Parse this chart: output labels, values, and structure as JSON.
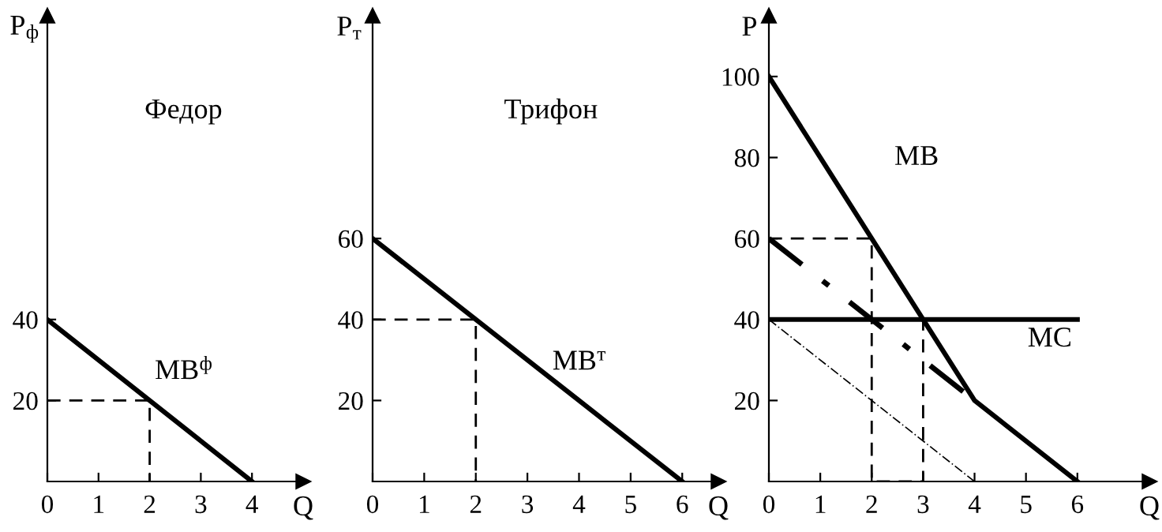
{
  "chart_data": [
    {
      "type": "line",
      "title": "Федор",
      "xlabel": "Q",
      "ylabel": "P$_{ф}$",
      "xlim": [
        0,
        5
      ],
      "ylim": [
        0,
        115
      ],
      "xticks": [
        0,
        1,
        2,
        3,
        4
      ],
      "yticks": [
        20,
        40
      ],
      "grid": false,
      "legend": false,
      "series": [
        {
          "color": "#000000",
          "line_style": "solid",
          "x": [
            0,
            4
          ],
          "values": [
            40,
            0
          ]
        },
        {
          "color": "#000000",
          "line_style": "dashed",
          "x": [
            0,
            2,
            2
          ],
          "values": [
            20,
            20,
            0
          ]
        }
      ],
      "annotations": [
        "MB$^{ф}$"
      ]
    },
    {
      "type": "line",
      "title": "Трифон",
      "xlabel": "Q",
      "ylabel": "P$_{т}$",
      "xlim": [
        0,
        6.7
      ],
      "ylim": [
        0,
        115
      ],
      "xticks": [
        0,
        1,
        2,
        3,
        4,
        5,
        6
      ],
      "yticks": [
        20,
        40,
        60
      ],
      "grid": false,
      "legend": false,
      "series": [
        {
          "color": "#000000",
          "line_style": "solid",
          "x": [
            0,
            6
          ],
          "values": [
            60,
            0
          ]
        },
        {
          "color": "#000000",
          "line_style": "dashed",
          "x": [
            0,
            2,
            2
          ],
          "values": [
            40,
            40,
            0
          ]
        }
      ],
      "annotations": [
        "MB$^{т}$"
      ]
    },
    {
      "type": "line",
      "xlabel": "Q",
      "ylabel": "P",
      "xlim": [
        0,
        7.4
      ],
      "ylim": [
        0,
        115
      ],
      "xticks": [
        0,
        1,
        2,
        3,
        4,
        5,
        6
      ],
      "yticks": [
        20,
        40,
        60,
        80,
        100
      ],
      "grid": false,
      "legend": false,
      "series": [
        {
          "color": "#000000",
          "line_style": "solid",
          "x": [
            0,
            4,
            6
          ],
          "values": [
            100,
            20,
            0
          ]
        },
        {
          "color": "#000000",
          "line_style": "solid",
          "x": [
            0,
            6
          ],
          "values": [
            40,
            40
          ]
        },
        {
          "color": "#000000",
          "line_style": "dashdot",
          "x": [
            0,
            4
          ],
          "values": [
            60,
            20
          ]
        },
        {
          "color": "#000000",
          "line_style": "dotted",
          "x": [
            0,
            4
          ],
          "values": [
            40,
            0
          ]
        },
        {
          "color": "#000000",
          "line_style": "dashed",
          "x": [
            0,
            2,
            2,
            3,
            3
          ],
          "values": [
            60,
            60,
            0,
            0,
            40
          ]
        }
      ],
      "annotations": [
        "MB",
        "MC"
      ]
    }
  ]
}
